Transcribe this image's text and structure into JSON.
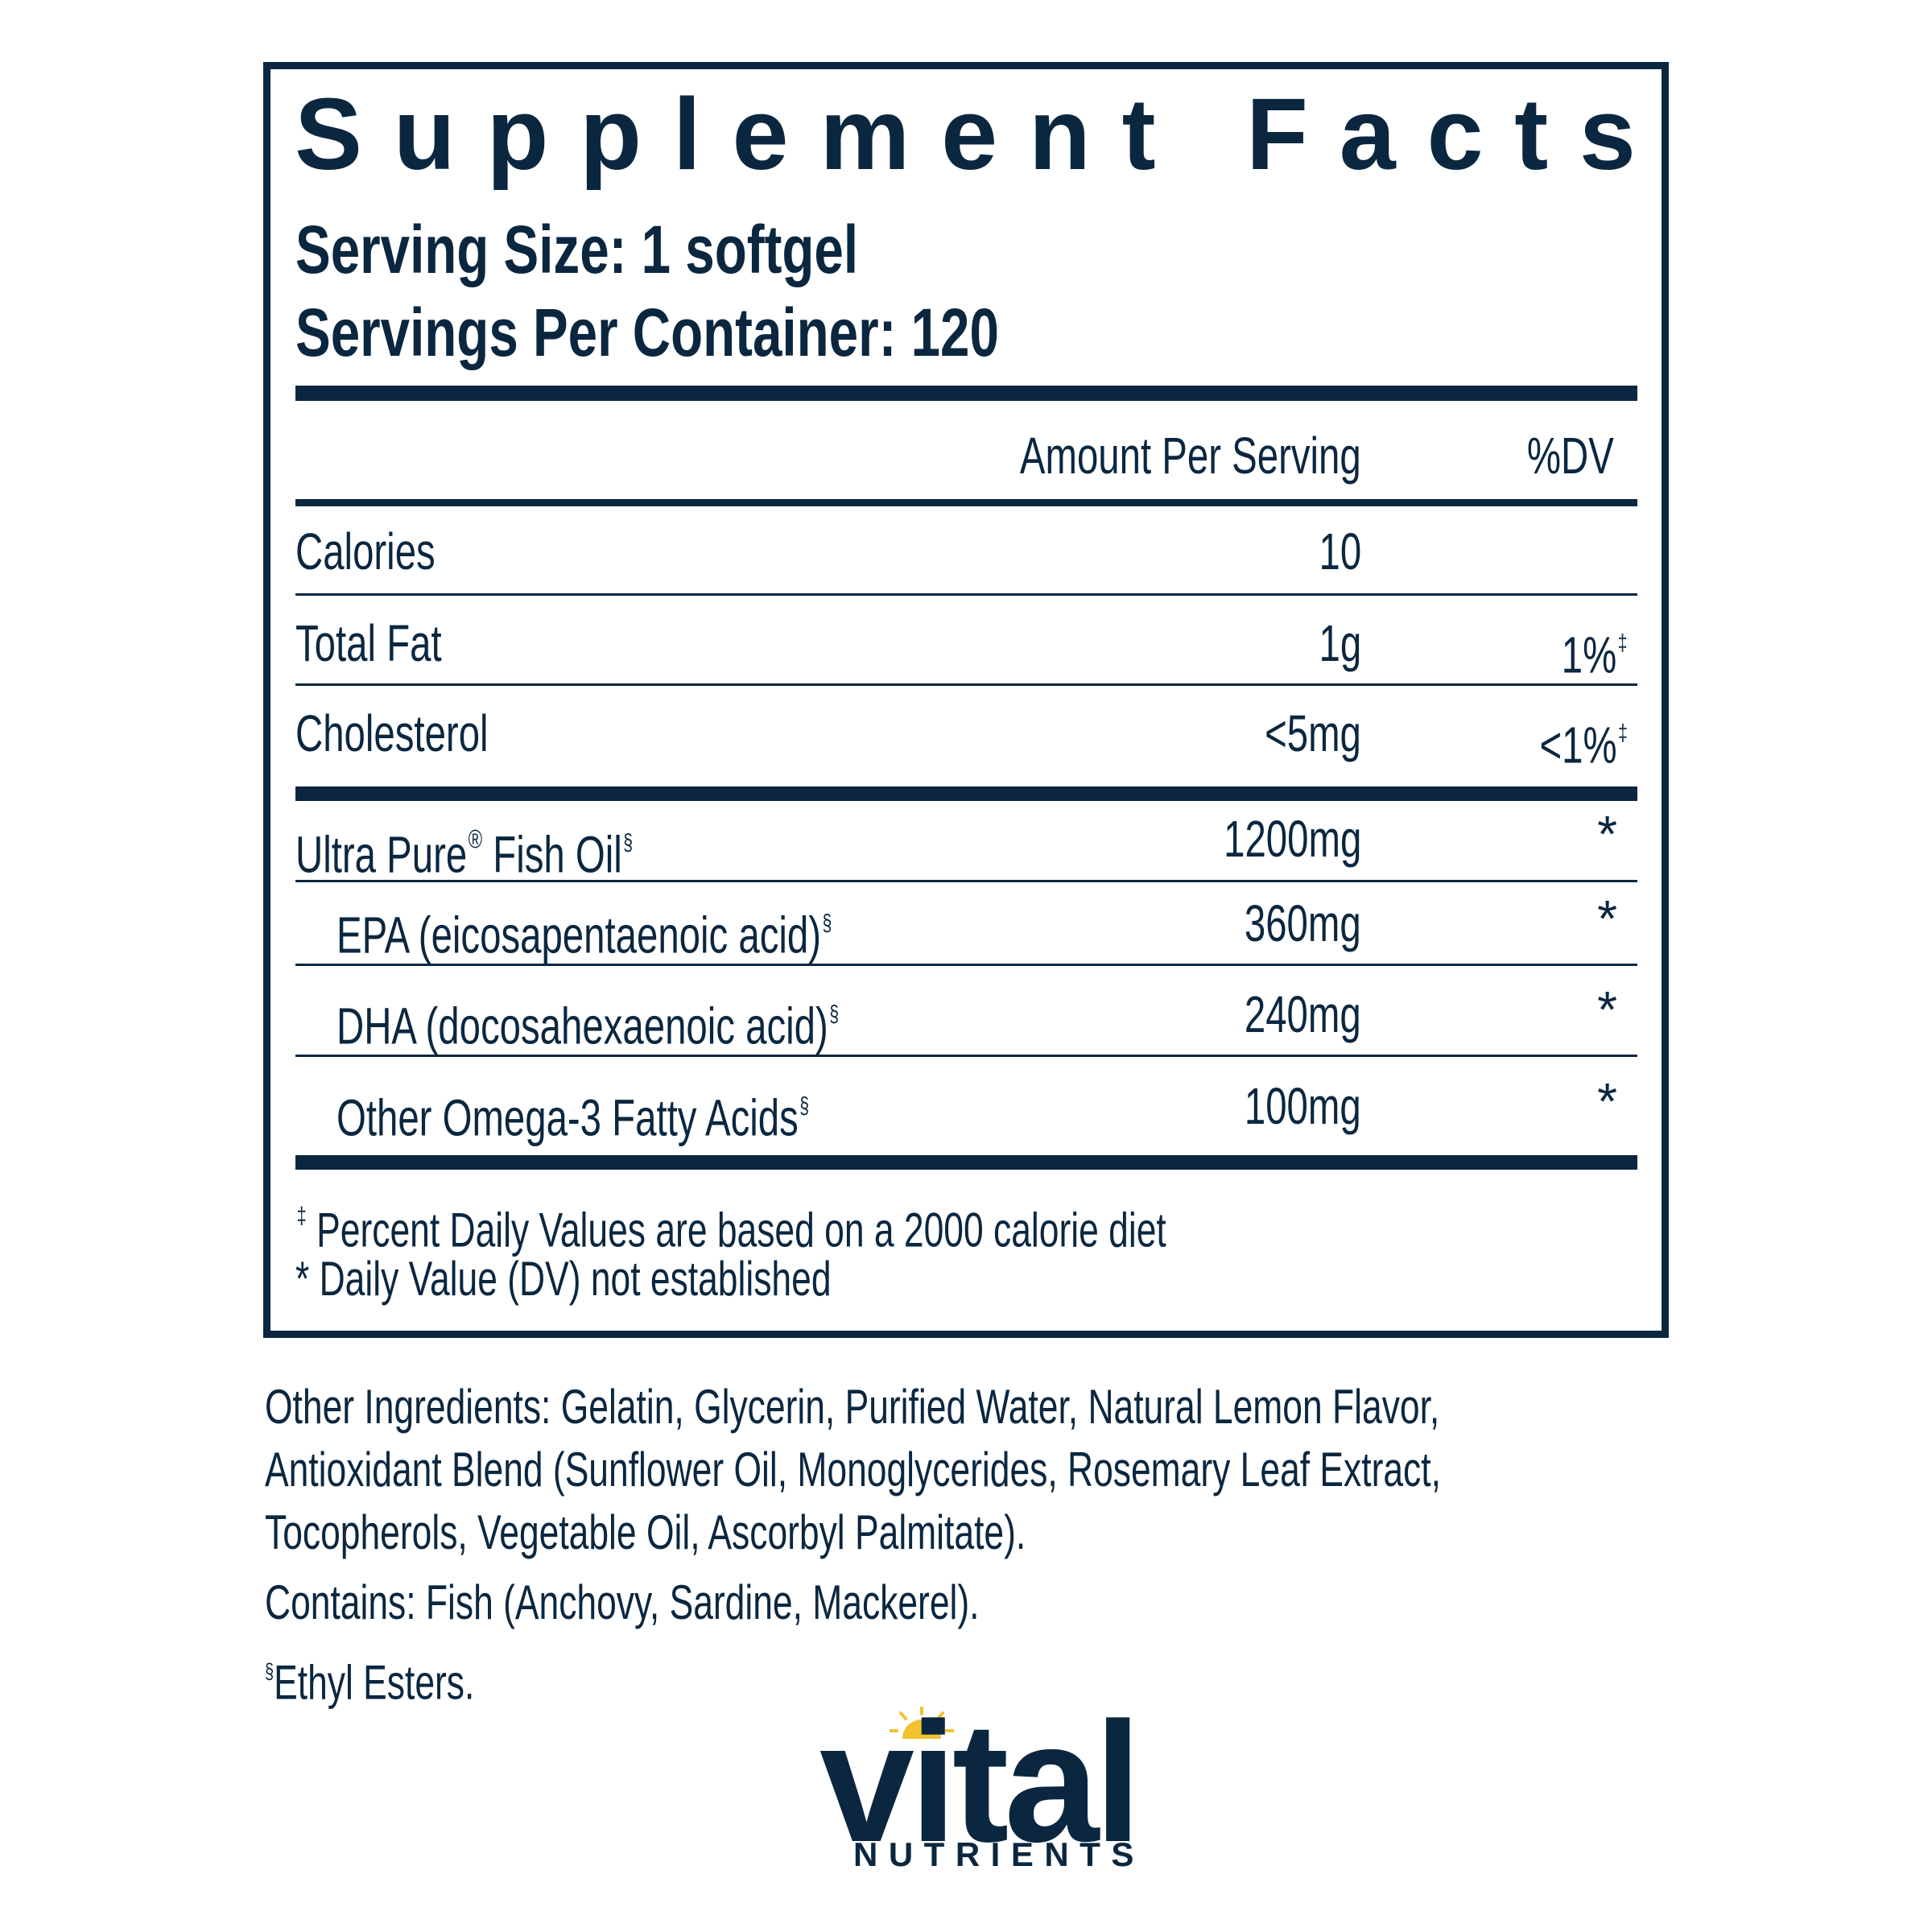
{
  "label": {
    "title": "Supplement Facts",
    "serving_size": "Serving Size: 1 softgel",
    "servings_per_container": "Servings Per Container: 120",
    "columns": {
      "amount": "Amount Per Serving",
      "dv": "%DV"
    },
    "nutrients": [
      {
        "name": "Calories",
        "amount": "10",
        "dv": "",
        "dv_mark": ""
      },
      {
        "name": "Total Fat",
        "amount": "1g",
        "dv": "1%",
        "dv_mark": "‡"
      },
      {
        "name": "Cholesterol",
        "amount": "<5mg",
        "dv": "<1%",
        "dv_mark": "‡"
      }
    ],
    "ingredients": [
      {
        "name": "Ultra Pure",
        "reg": "®",
        "name_rest": " Fish Oil",
        "mark": "§",
        "amount": "1200mg",
        "dv": "*",
        "indent": false
      },
      {
        "name": "EPA (eicosapentaenoic acid)",
        "reg": "",
        "name_rest": "",
        "mark": "§",
        "amount": "360mg",
        "dv": "*",
        "indent": true
      },
      {
        "name": "DHA (docosahexaenoic acid)",
        "reg": "",
        "name_rest": "",
        "mark": "§",
        "amount": "240mg",
        "dv": "*",
        "indent": true
      },
      {
        "name": "Other Omega-3 Fatty Acids",
        "reg": "",
        "name_rest": "",
        "mark": "§",
        "amount": "100mg",
        "dv": "*",
        "indent": true
      }
    ],
    "footnotes": [
      {
        "mark": "‡",
        "text": " Percent Daily Values are based on a 2000 calorie diet"
      },
      {
        "mark": "*",
        "text": " Daily Value (DV) not established"
      }
    ]
  },
  "other_info": {
    "ingredients_lines": [
      "Other Ingredients: Gelatin, Glycerin, Purified Water, Natural Lemon Flavor,",
      "Antioxidant Blend (Sunflower Oil, Monoglycerides, Rosemary Leaf Extract,",
      "Tocopherols, Vegetable Oil, Ascorbyl Palmitate)."
    ],
    "contains": "Contains: Fish (Anchovy, Sardine, Mackerel).",
    "ethyl_mark": "§",
    "ethyl_text": "Ethyl Esters."
  },
  "brand": {
    "name": "vital",
    "subtitle": "NUTRIENTS",
    "primary_color": "#0b2740",
    "sun_color": "#f2c12e"
  }
}
